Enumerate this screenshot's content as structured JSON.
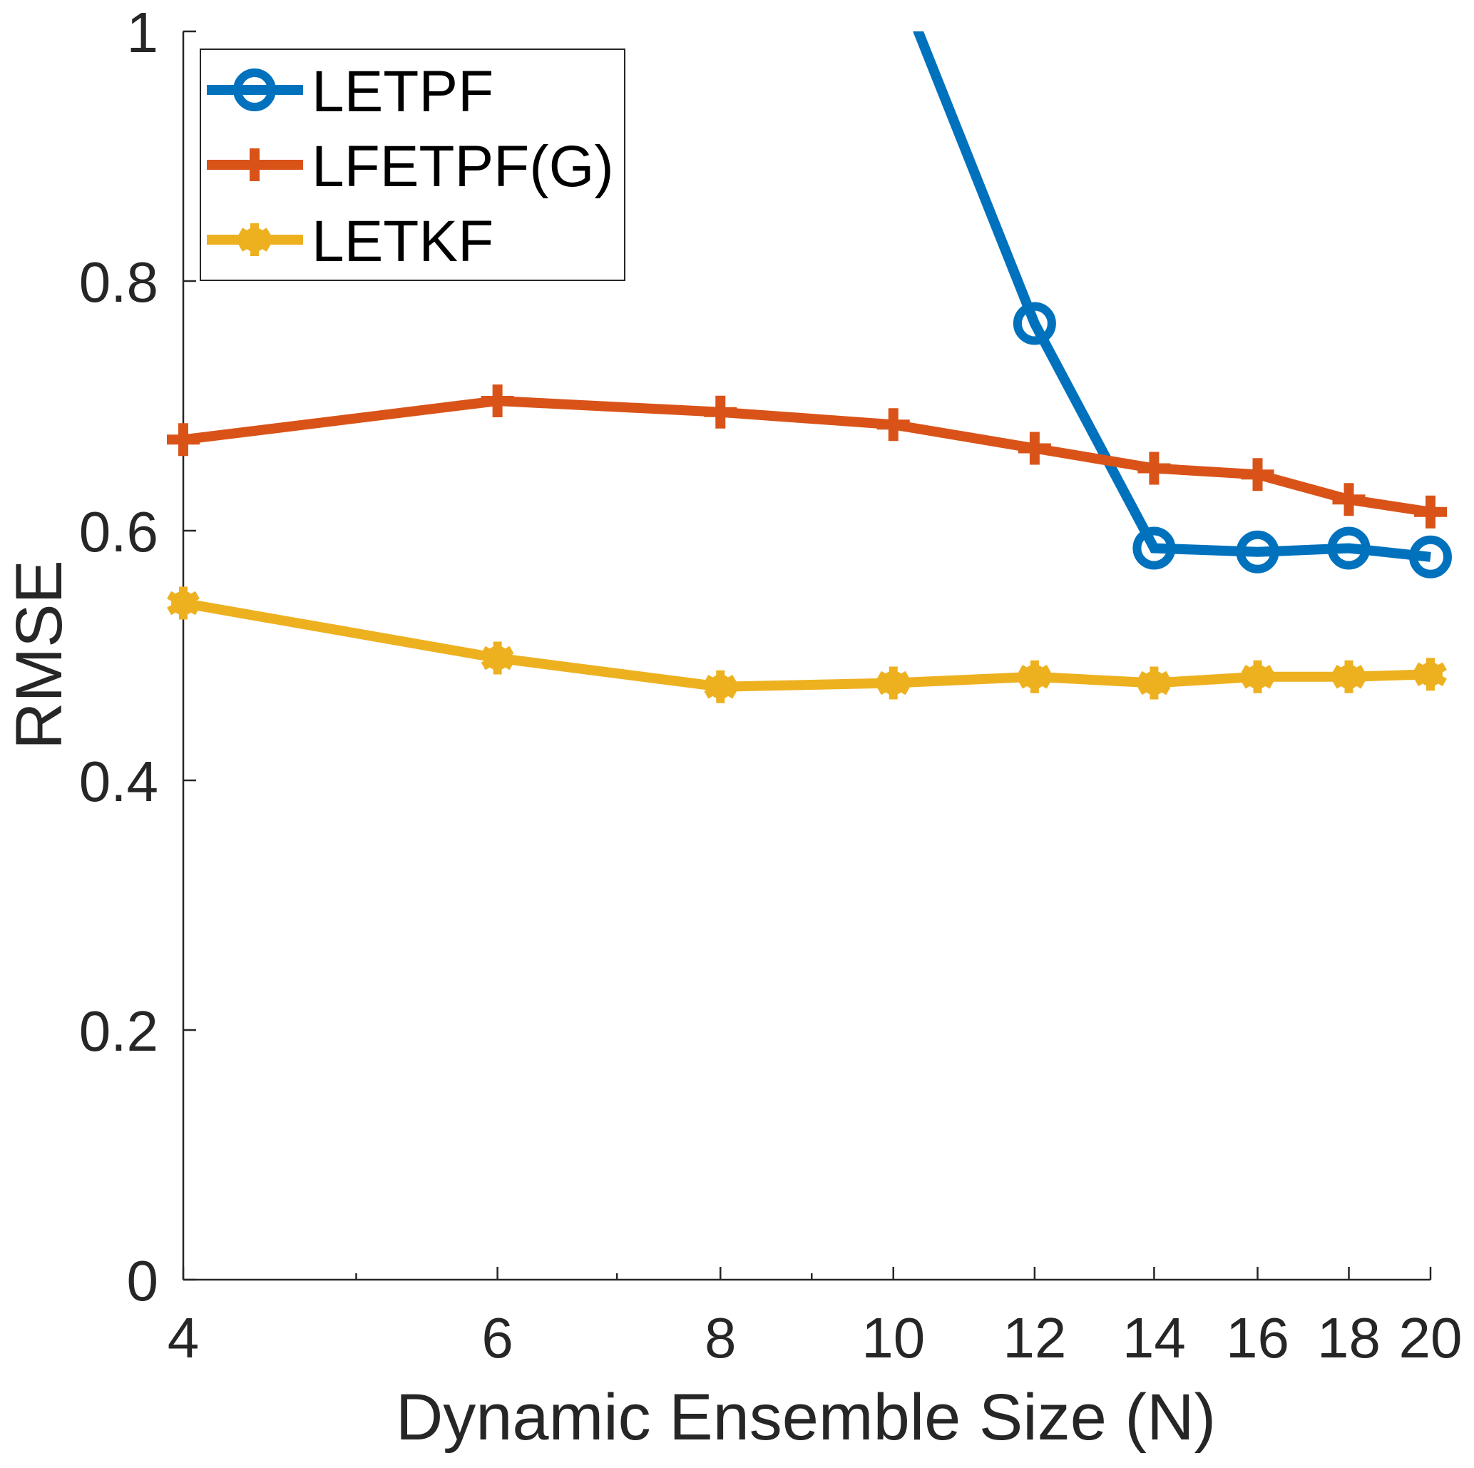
{
  "chart_data": {
    "type": "line",
    "title": "",
    "xlabel": "Dynamic Ensemble Size (N)",
    "ylabel": "RMSE",
    "xscale": "log",
    "xlim": [
      4,
      20
    ],
    "ylim": [
      0,
      1
    ],
    "grid": false,
    "box": false,
    "legend_position": "top-left",
    "x_ticks": [
      4,
      6,
      8,
      10,
      12,
      14,
      16,
      18,
      20
    ],
    "x_tick_labels": [
      "4",
      "6",
      "8",
      "10",
      "12",
      "14",
      "16",
      "18",
      "20"
    ],
    "x_minor_ticks": [
      5,
      7,
      9
    ],
    "y_ticks": [
      0,
      0.2,
      0.4,
      0.6,
      0.8,
      1
    ],
    "y_tick_labels": [
      "0",
      "0.2",
      "0.4",
      "0.6",
      "0.8",
      "1"
    ],
    "x": [
      4,
      6,
      8,
      10,
      12,
      14,
      16,
      18,
      20
    ],
    "series": [
      {
        "name": "LETPF",
        "color": "#0072BD",
        "marker": "circle",
        "values": [
          null,
          null,
          null,
          1.05,
          0.766,
          0.586,
          0.583,
          0.586,
          0.579
        ],
        "note": "values at N<=10 lie above the y-axis limit (clipped)"
      },
      {
        "name": "LFETPF(G)",
        "color": "#D95319",
        "marker": "plus",
        "values": [
          0.673,
          0.704,
          0.695,
          0.685,
          0.666,
          0.65,
          0.645,
          0.625,
          0.615
        ]
      },
      {
        "name": "LETKF",
        "color": "#EDB120",
        "marker": "asterisk",
        "values": [
          0.542,
          0.498,
          0.475,
          0.478,
          0.483,
          0.478,
          0.483,
          0.483,
          0.485
        ]
      }
    ]
  }
}
